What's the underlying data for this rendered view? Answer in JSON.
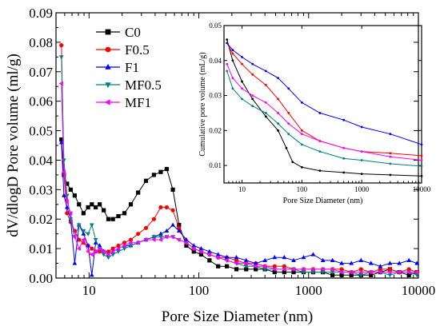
{
  "chart_data": [
    {
      "type": "line",
      "xlabel": "Pore Size Diameter (nm)",
      "ylabel": "dV/dlogD Pore volume (ml/g)",
      "xscale": "log",
      "xlim": [
        5,
        10000
      ],
      "ylim": [
        0,
        0.09
      ],
      "xticks": [
        10,
        100,
        1000,
        10000
      ],
      "xtick_labels": [
        "10",
        "100",
        "1000",
        "10000"
      ],
      "yticks": [
        0,
        0.01,
        0.02,
        0.03,
        0.04,
        0.05,
        0.06,
        0.07,
        0.08,
        0.09
      ],
      "ytick_labels": [
        "0.00",
        "0.01",
        "0.02",
        "0.03",
        "0.04",
        "0.05",
        "0.06",
        "0.07",
        "0.08",
        "0.09"
      ],
      "legend_position": "top-left",
      "grid": false,
      "series": [
        {
          "name": "C0",
          "color": "#000000",
          "marker": "square",
          "x": [
            5.6,
            5.9,
            6.3,
            6.8,
            7.4,
            8.1,
            8.9,
            9.8,
            10.6,
            11.5,
            12.5,
            13.6,
            15,
            16.5,
            18.5,
            21,
            24,
            28,
            33,
            39,
            45,
            51,
            58,
            66,
            77,
            90,
            105,
            125,
            150,
            180,
            220,
            270,
            330,
            400,
            490,
            600,
            730,
            900,
            1100,
            1350,
            1650,
            2000,
            2450,
            3000,
            3700,
            4500,
            5500,
            6700,
            8200,
            9700
          ],
          "y": [
            0.047,
            0.035,
            0.032,
            0.03,
            0.028,
            0.025,
            0.022,
            0.024,
            0.025,
            0.024,
            0.025,
            0.023,
            0.02,
            0.02,
            0.021,
            0.022,
            0.025,
            0.029,
            0.033,
            0.035,
            0.036,
            0.037,
            0.03,
            0.018,
            0.011,
            0.009,
            0.008,
            0.006,
            0.004,
            0.004,
            0.003,
            0.003,
            0.003,
            0.003,
            0.002,
            0.002,
            0.002,
            0.002,
            0.002,
            0.002,
            0.001,
            0.001,
            0.001,
            0.001,
            0.001,
            0.002,
            0.003,
            0.002,
            0.001,
            0.002
          ]
        },
        {
          "name": "F0.5",
          "color": "#ff0000",
          "marker": "circle",
          "x": [
            5.6,
            5.9,
            6.3,
            6.8,
            7.4,
            8.1,
            8.9,
            9.8,
            10.6,
            11.5,
            12.5,
            13.6,
            15,
            16.5,
            18.5,
            21,
            24,
            28,
            33,
            39,
            45,
            51,
            58,
            66,
            77,
            90,
            105,
            125,
            150,
            180,
            220,
            270,
            330,
            400,
            490,
            600,
            730,
            900,
            1100,
            1350,
            1650,
            2000,
            2450,
            3000,
            3700,
            4500,
            5500,
            6700,
            8200,
            9700
          ],
          "y": [
            0.079,
            0.035,
            0.022,
            0.019,
            0.016,
            0.013,
            0.012,
            0.011,
            0.01,
            0.009,
            0.009,
            0.009,
            0.009,
            0.01,
            0.011,
            0.012,
            0.013,
            0.015,
            0.017,
            0.02,
            0.024,
            0.024,
            0.023,
            0.017,
            0.012,
            0.01,
            0.009,
            0.008,
            0.007,
            0.007,
            0.006,
            0.005,
            0.005,
            0.004,
            0.004,
            0.004,
            0.003,
            0.003,
            0.003,
            0.003,
            0.003,
            0.003,
            0.002,
            0.003,
            0.002,
            0.003,
            0.003,
            0.002,
            0.003,
            0.002
          ]
        },
        {
          "name": "F1",
          "color": "#0000ff",
          "marker": "triangle-up",
          "x": [
            5.6,
            5.9,
            6.3,
            6.8,
            7.4,
            8.1,
            8.9,
            9.8,
            10.6,
            11.5,
            12.5,
            13.6,
            15,
            16.5,
            18.5,
            21,
            24,
            28,
            33,
            39,
            45,
            51,
            58,
            66,
            77,
            90,
            105,
            125,
            150,
            180,
            220,
            270,
            330,
            400,
            490,
            600,
            730,
            900,
            1100,
            1350,
            1650,
            2000,
            2450,
            3000,
            3700,
            4500,
            5500,
            6700,
            8200,
            9700
          ],
          "y": [
            0.046,
            0.028,
            0.024,
            0.02,
            0.005,
            0.018,
            0.015,
            0.011,
            0.001,
            0.012,
            0.011,
            0.009,
            0.008,
            0.009,
            0.01,
            0.011,
            0.011,
            0.012,
            0.013,
            0.014,
            0.015,
            0.016,
            0.018,
            0.016,
            0.013,
            0.011,
            0.01,
            0.009,
            0.008,
            0.007,
            0.007,
            0.006,
            0.005,
            0.006,
            0.007,
            0.007,
            0.006,
            0.007,
            0.008,
            0.006,
            0.006,
            0.005,
            0.005,
            0.006,
            0.005,
            0.004,
            0.005,
            0.005,
            0.006,
            0.005
          ]
        },
        {
          "name": "MF0.5",
          "color": "#008080",
          "marker": "triangle-down",
          "x": [
            5.6,
            5.9,
            6.3,
            6.8,
            7.4,
            8.1,
            8.9,
            9.8,
            10.6,
            11.5,
            12.5,
            13.6,
            15,
            16.5,
            18.5,
            21,
            24,
            28,
            33,
            39,
            45,
            51,
            58,
            66,
            77,
            90,
            105,
            125,
            150,
            180,
            220,
            270,
            330,
            400,
            490,
            600,
            730,
            900,
            1100,
            1350,
            1650,
            2000,
            2450,
            3000,
            3700,
            4500,
            5500,
            6700,
            8200,
            9700
          ],
          "y": [
            0.075,
            0.04,
            0.028,
            0.02,
            0.014,
            0.018,
            0.016,
            0.015,
            0.018,
            0.013,
            0.01,
            0.008,
            0.007,
            0.008,
            0.009,
            0.01,
            0.011,
            0.012,
            0.013,
            0.014,
            0.014,
            0.014,
            0.014,
            0.013,
            0.012,
            0.01,
            0.009,
            0.008,
            0.007,
            0.006,
            0.005,
            0.004,
            0.004,
            0.003,
            0.003,
            0.003,
            0.003,
            0.002,
            0.002,
            0.002,
            0.002,
            0.002,
            0.002,
            0.001,
            0.002,
            0.002,
            0.001,
            0.002,
            0.002,
            0.001
          ]
        },
        {
          "name": "MF1",
          "color": "#ff00ff",
          "marker": "triangle-left",
          "x": [
            5.6,
            5.9,
            6.3,
            6.8,
            7.4,
            8.1,
            8.9,
            9.8,
            10.6,
            11.5,
            12.5,
            13.6,
            15,
            16.5,
            18.5,
            21,
            24,
            28,
            33,
            39,
            45,
            51,
            58,
            66,
            77,
            90,
            105,
            125,
            150,
            180,
            220,
            270,
            330,
            400,
            490,
            600,
            730,
            900,
            1100,
            1350,
            1650,
            2000,
            2450,
            3000,
            3700,
            4500,
            5500,
            6700,
            8200,
            9700
          ],
          "y": [
            0.066,
            0.036,
            0.026,
            0.022,
            0.014,
            0.01,
            0.013,
            0.009,
            0.008,
            0.009,
            0.01,
            0.009,
            0.008,
            0.009,
            0.01,
            0.011,
            0.012,
            0.012,
            0.013,
            0.013,
            0.013,
            0.014,
            0.014,
            0.013,
            0.012,
            0.01,
            0.009,
            0.008,
            0.007,
            0.006,
            0.005,
            0.005,
            0.004,
            0.004,
            0.003,
            0.003,
            0.003,
            0.003,
            0.003,
            0.003,
            0.003,
            0.002,
            0.002,
            0.002,
            0.002,
            0.002,
            0.002,
            0.002,
            0.002,
            0.002
          ]
        }
      ]
    },
    {
      "type": "line",
      "role": "inset",
      "xlabel": "Pore Size Diameter (nm)",
      "ylabel": "Cumulative pore volume (mL/g)",
      "xscale": "log",
      "xlim": [
        5,
        10000
      ],
      "ylim": [
        0.005,
        0.05
      ],
      "xticks": [
        10,
        100,
        1000,
        10000
      ],
      "xtick_labels": [
        "10",
        "100",
        "1000",
        "10000"
      ],
      "yticks": [
        0.01,
        0.02,
        0.03,
        0.04,
        0.05
      ],
      "ytick_labels": [
        "0.01",
        "0.02",
        "0.03",
        "0.04",
        "0.05"
      ],
      "series": [
        {
          "name": "C0",
          "color": "#000000",
          "x": [
            5.6,
            7,
            10,
            15,
            25,
            40,
            55,
            70,
            100,
            200,
            500,
            1000,
            3000,
            10000
          ],
          "y": [
            0.046,
            0.04,
            0.034,
            0.029,
            0.024,
            0.02,
            0.015,
            0.011,
            0.0095,
            0.0085,
            0.008,
            0.0076,
            0.0073,
            0.007
          ]
        },
        {
          "name": "F0.5",
          "color": "#ff0000",
          "x": [
            5.6,
            7,
            10,
            15,
            25,
            40,
            60,
            100,
            200,
            500,
            1000,
            3000,
            10000
          ],
          "y": [
            0.045,
            0.042,
            0.039,
            0.036,
            0.033,
            0.029,
            0.025,
            0.02,
            0.017,
            0.015,
            0.014,
            0.0135,
            0.0128
          ]
        },
        {
          "name": "F1",
          "color": "#0000ff",
          "x": [
            5.6,
            7,
            10,
            15,
            25,
            40,
            60,
            100,
            200,
            500,
            1000,
            3000,
            10000
          ],
          "y": [
            0.045,
            0.043,
            0.041,
            0.039,
            0.037,
            0.035,
            0.032,
            0.028,
            0.025,
            0.023,
            0.021,
            0.019,
            0.016
          ]
        },
        {
          "name": "MF0.5",
          "color": "#008080",
          "x": [
            5.6,
            7,
            10,
            15,
            25,
            40,
            60,
            100,
            200,
            500,
            1000,
            3000,
            10000
          ],
          "y": [
            0.037,
            0.032,
            0.029,
            0.027,
            0.025,
            0.022,
            0.019,
            0.016,
            0.014,
            0.012,
            0.0115,
            0.0105,
            0.0098
          ]
        },
        {
          "name": "MF1",
          "color": "#ff00ff",
          "x": [
            5.6,
            7,
            10,
            15,
            25,
            40,
            60,
            100,
            200,
            500,
            1000,
            3000,
            10000
          ],
          "y": [
            0.039,
            0.035,
            0.032,
            0.03,
            0.028,
            0.025,
            0.022,
            0.019,
            0.017,
            0.015,
            0.014,
            0.0125,
            0.0115
          ]
        }
      ]
    }
  ]
}
